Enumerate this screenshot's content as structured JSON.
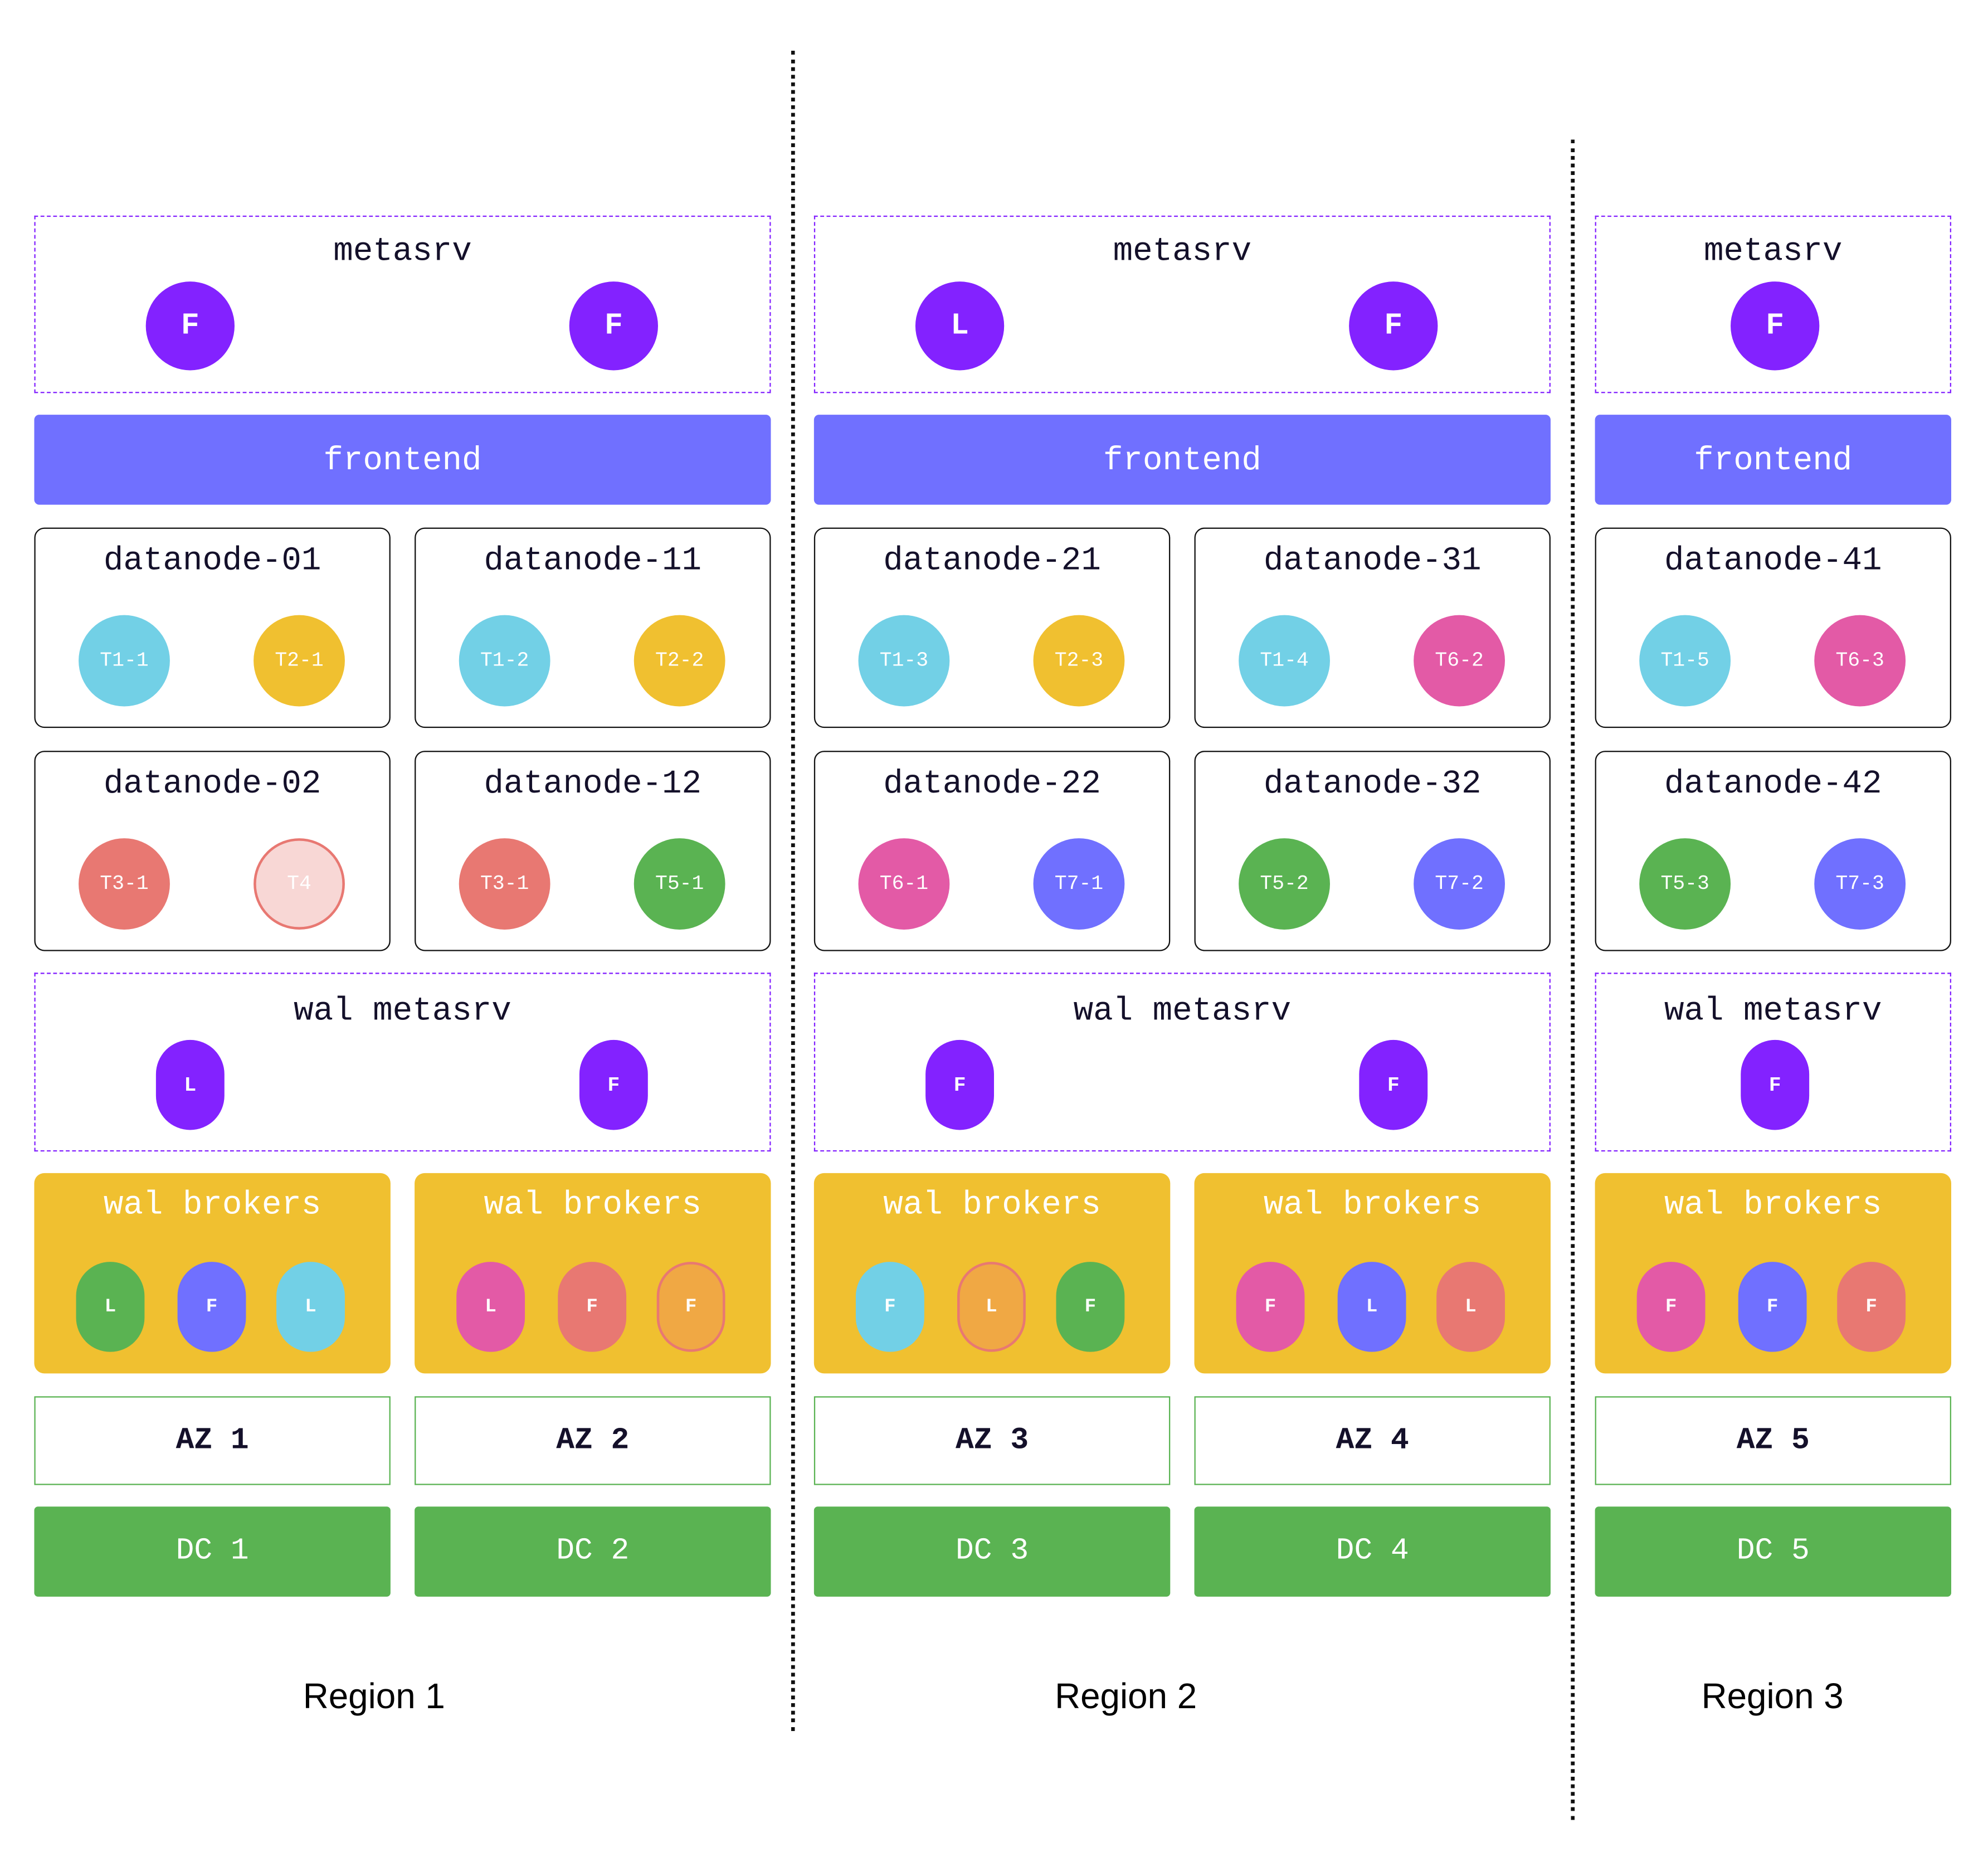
{
  "colors": {
    "purple": "#8322ff",
    "frontend": "#7070ff",
    "cyan": "#72d0e6",
    "yellow": "#f0c030",
    "pink": "#e35aa6",
    "salmon": "#e87872",
    "green": "#5ab352",
    "blue": "#7070ff",
    "lightsalmon": "#f8d7d5",
    "orange": "#f0a844"
  },
  "regions": [
    {
      "label": "Region 1",
      "metasrv": {
        "title": "metasrv",
        "roles": [
          "F",
          "F"
        ]
      },
      "frontend": "frontend",
      "wal_metasrv": {
        "title": "wal metasrv",
        "roles": [
          "L",
          "F"
        ]
      },
      "zones": [
        {
          "datanodes": [
            {
              "name": "datanode-01",
              "shards": [
                {
                  "label": "T1-1",
                  "color": "cyan"
                },
                {
                  "label": "T2-1",
                  "color": "yellow"
                }
              ]
            },
            {
              "name": "datanode-02",
              "shards": [
                {
                  "label": "T3-1",
                  "color": "salmon"
                },
                {
                  "label": "T4",
                  "color": "lightsalmon",
                  "outlined": true
                }
              ]
            }
          ],
          "brokers": {
            "title": "wal brokers",
            "replicas": [
              {
                "role": "L",
                "color": "green"
              },
              {
                "role": "F",
                "color": "blue"
              },
              {
                "role": "L",
                "color": "cyan"
              }
            ]
          },
          "az": "AZ 1",
          "dc": "DC 1"
        },
        {
          "datanodes": [
            {
              "name": "datanode-11",
              "shards": [
                {
                  "label": "T1-2",
                  "color": "cyan"
                },
                {
                  "label": "T2-2",
                  "color": "yellow"
                }
              ]
            },
            {
              "name": "datanode-12",
              "shards": [
                {
                  "label": "T3-1",
                  "color": "salmon"
                },
                {
                  "label": "T5-1",
                  "color": "green"
                }
              ]
            }
          ],
          "brokers": {
            "title": "wal brokers",
            "replicas": [
              {
                "role": "L",
                "color": "pink"
              },
              {
                "role": "F",
                "color": "salmon"
              },
              {
                "role": "F",
                "color": "orange",
                "outlined": true
              }
            ]
          },
          "az": "AZ 2",
          "dc": "DC 2"
        }
      ]
    },
    {
      "label": "Region 2",
      "metasrv": {
        "title": "metasrv",
        "roles": [
          "L",
          "F"
        ]
      },
      "frontend": "frontend",
      "wal_metasrv": {
        "title": "wal metasrv",
        "roles": [
          "F",
          "F"
        ]
      },
      "zones": [
        {
          "datanodes": [
            {
              "name": "datanode-21",
              "shards": [
                {
                  "label": "T1-3",
                  "color": "cyan"
                },
                {
                  "label": "T2-3",
                  "color": "yellow"
                }
              ]
            },
            {
              "name": "datanode-22",
              "shards": [
                {
                  "label": "T6-1",
                  "color": "pink"
                },
                {
                  "label": "T7-1",
                  "color": "blue"
                }
              ]
            }
          ],
          "brokers": {
            "title": "wal brokers",
            "replicas": [
              {
                "role": "F",
                "color": "cyan"
              },
              {
                "role": "L",
                "color": "orange",
                "outlined": true
              },
              {
                "role": "F",
                "color": "green"
              }
            ]
          },
          "az": "AZ 3",
          "dc": "DC 3"
        },
        {
          "datanodes": [
            {
              "name": "datanode-31",
              "shards": [
                {
                  "label": "T1-4",
                  "color": "cyan"
                },
                {
                  "label": "T6-2",
                  "color": "pink"
                }
              ]
            },
            {
              "name": "datanode-32",
              "shards": [
                {
                  "label": "T5-2",
                  "color": "green"
                },
                {
                  "label": "T7-2",
                  "color": "blue"
                }
              ]
            }
          ],
          "brokers": {
            "title": "wal brokers",
            "replicas": [
              {
                "role": "F",
                "color": "pink"
              },
              {
                "role": "L",
                "color": "blue"
              },
              {
                "role": "L",
                "color": "salmon"
              }
            ]
          },
          "az": "AZ 4",
          "dc": "DC 4"
        }
      ]
    },
    {
      "label": "Region 3",
      "metasrv": {
        "title": "metasrv",
        "roles": [
          "F"
        ]
      },
      "frontend": "frontend",
      "wal_metasrv": {
        "title": "wal metasrv",
        "roles": [
          "F"
        ]
      },
      "zones": [
        {
          "datanodes": [
            {
              "name": "datanode-41",
              "shards": [
                {
                  "label": "T1-5",
                  "color": "cyan"
                },
                {
                  "label": "T6-3",
                  "color": "pink"
                }
              ]
            },
            {
              "name": "datanode-42",
              "shards": [
                {
                  "label": "T5-3",
                  "color": "green"
                },
                {
                  "label": "T7-3",
                  "color": "blue"
                }
              ]
            }
          ],
          "brokers": {
            "title": "wal brokers",
            "replicas": [
              {
                "role": "F",
                "color": "pink"
              },
              {
                "role": "F",
                "color": "blue"
              },
              {
                "role": "F",
                "color": "salmon"
              }
            ]
          },
          "az": "AZ 5",
          "dc": "DC 5"
        }
      ]
    }
  ]
}
